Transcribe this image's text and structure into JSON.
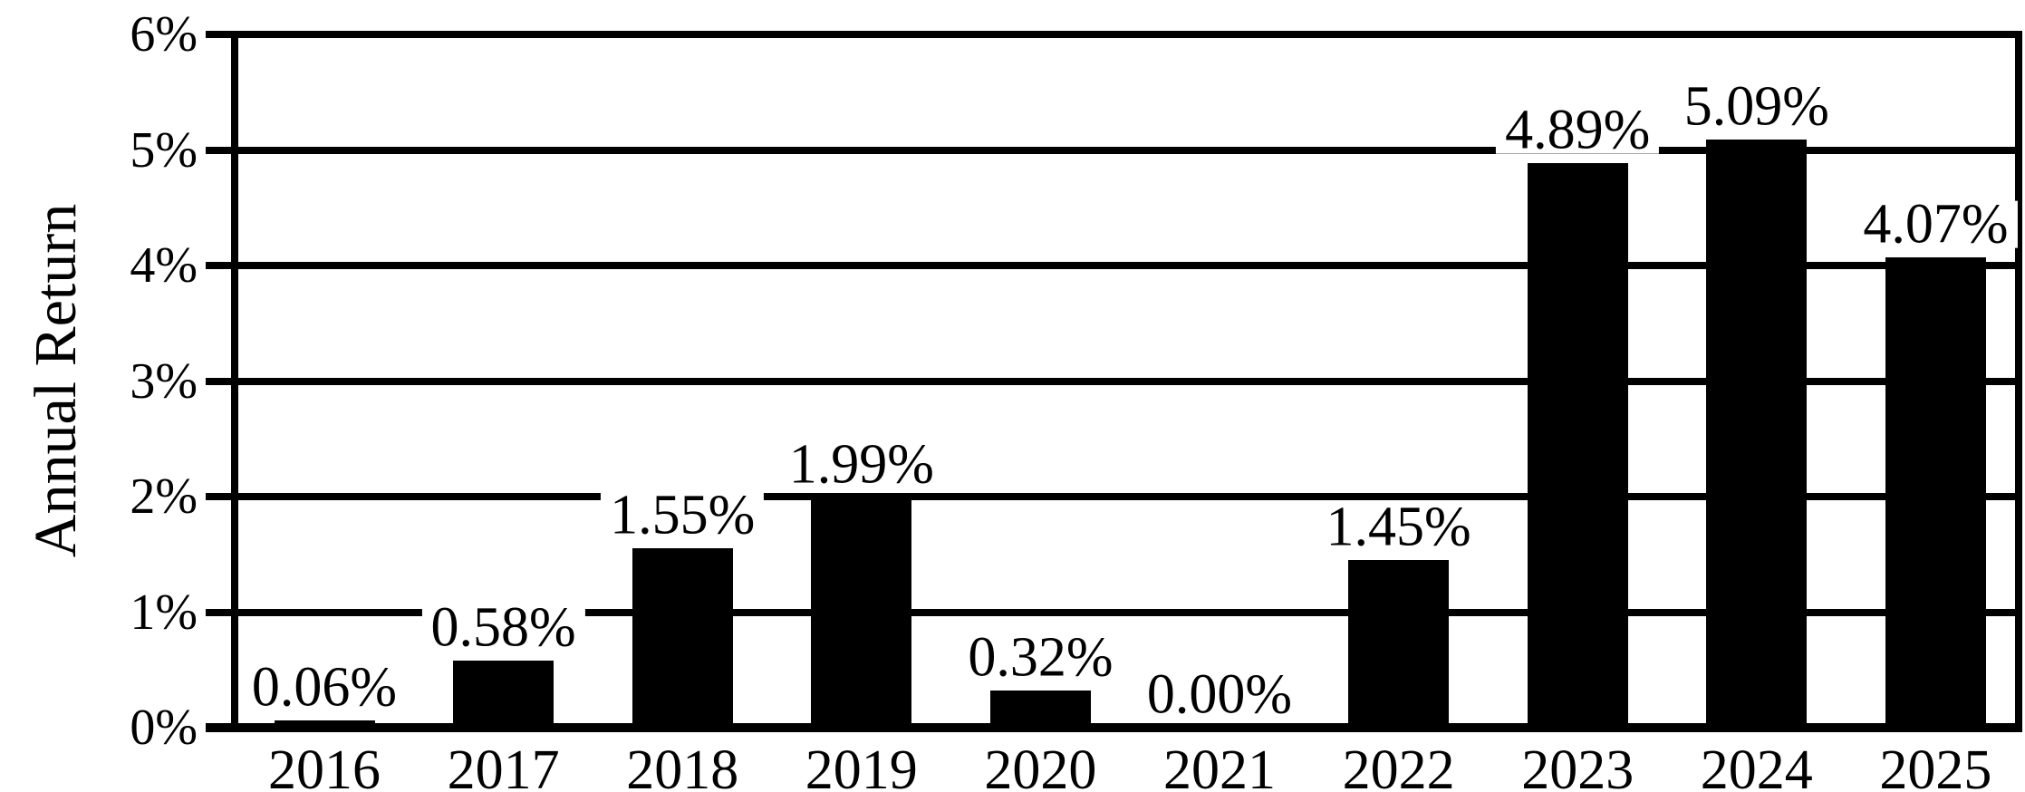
{
  "chart_data": {
    "type": "bar",
    "title": "",
    "ylabel": "Annual Return",
    "xlabel": "",
    "categories": [
      "2016",
      "2017",
      "2018",
      "2019",
      "2020",
      "2021",
      "2022",
      "2023",
      "2024",
      "2025"
    ],
    "values": [
      0.06,
      0.58,
      1.55,
      1.99,
      0.32,
      0.0,
      1.45,
      4.89,
      5.09,
      4.07
    ],
    "bar_labels": [
      "0.06%",
      "0.58%",
      "1.55%",
      "1.99%",
      "0.32%",
      "0.00%",
      "1.45%",
      "4.89%",
      "5.09%",
      "4.07%"
    ],
    "y_ticks": [
      "0%",
      "1%",
      "2%",
      "3%",
      "4%",
      "5%",
      "6%"
    ],
    "ylim": [
      0,
      6
    ],
    "grid": "horizontal",
    "legend": "none",
    "bar_color": "#000000",
    "background_color": "#ffffff",
    "text_color": "#000000"
  }
}
